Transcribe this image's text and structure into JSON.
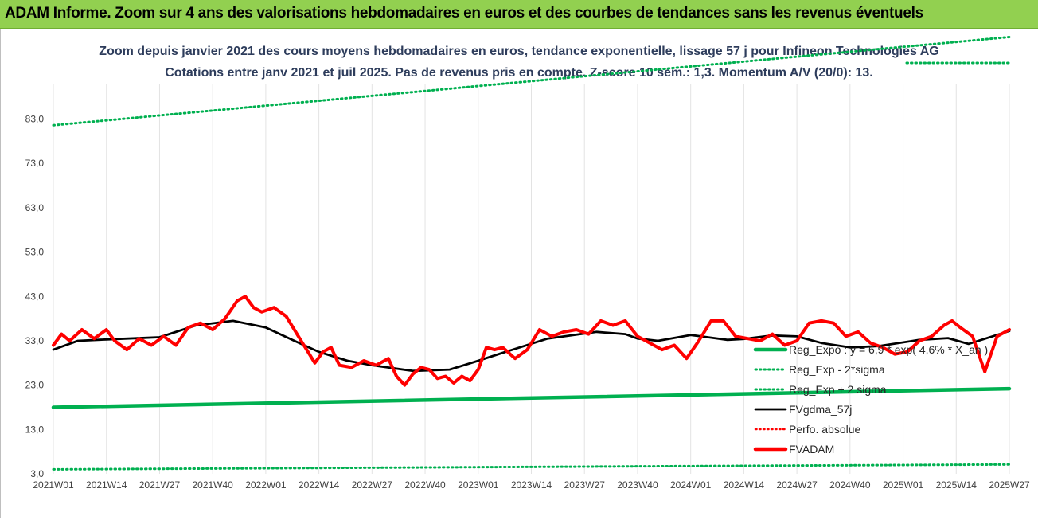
{
  "banner": {
    "title": "ADAM Informe. Zoom sur 4 ans des valorisations hebdomadaires en euros et des courbes de tendances sans les revenus éventuels"
  },
  "chart_data": {
    "type": "line",
    "title": "Zoom depuis janvier 2021 des cours moyens hebdomadaires en euros, tendance exponentielle, lissage 57 j pour Infineon Technologies AG",
    "subtitle": "Cotations entre janv 2021 et juil 2025. Pas de revenus pris en compte. Z-score 10 sem.: 1,3. Momentum A/V (20/0): 13.",
    "xlabel": "",
    "ylabel": "",
    "ylim": [
      3,
      91
    ],
    "yticks": [
      "3,0",
      "13,0",
      "23,0",
      "33,0",
      "43,0",
      "53,0",
      "63,0",
      "73,0",
      "83,0"
    ],
    "x_tick_labels": [
      "2021W01",
      "2021W14",
      "2021W27",
      "2021W40",
      "2022W01",
      "2022W14",
      "2022W27",
      "2022W40",
      "2023W01",
      "2023W14",
      "2023W27",
      "2023W40",
      "2024W01",
      "2024W14",
      "2024W27",
      "2024W40",
      "2025W01",
      "2025W14",
      "2025W27"
    ],
    "grid": "vertical",
    "legend_placement": "bottom-right",
    "colors": {
      "expo": "#00b050",
      "gdma": "#000000",
      "perfo": "#ff0000",
      "fvadam": "#ff0000"
    },
    "legend": [
      {
        "label": "Reg_Expo : y = 6,9 * exp( 4,6% * X_an )",
        "style": "solid-green-thick"
      },
      {
        "label": "Reg_Exp - 2*sigma",
        "style": "dotted-green"
      },
      {
        "label": "Reg_Exp + 2 sigma",
        "style": "dotted-green"
      },
      {
        "label": "FVgdma_57j",
        "style": "solid-black"
      },
      {
        "label": "Perfo. absolue",
        "style": "dotted-red"
      },
      {
        "label": "FVADAM",
        "style": "solid-red-thick"
      }
    ],
    "series": [
      {
        "name": "Reg_Expo : y = 6,9 * exp( 4,6% * X_an )",
        "x_week_index": [
          0,
          234
        ],
        "values": [
          18.0,
          22.2
        ]
      },
      {
        "name": "Reg_Exp - 2*sigma",
        "x_week_index": [
          0,
          234
        ],
        "values": [
          4.0,
          5.1
        ]
      },
      {
        "name": "Reg_Exp + 2 sigma",
        "x_week_index": [
          0,
          234
        ],
        "values": [
          81.6,
          101.5
        ]
      },
      {
        "name": "FVgdma_57j",
        "x_week_index": [
          0,
          6,
          13,
          26,
          35,
          44,
          52,
          59,
          65,
          72,
          78,
          88,
          97,
          104,
          110,
          121,
          133,
          140,
          143,
          148,
          156,
          165,
          169,
          176,
          182,
          188,
          195,
          202,
          212,
          219,
          224,
          234
        ],
        "values": [
          31.0,
          33.0,
          33.3,
          33.8,
          36.5,
          37.5,
          36.0,
          33.0,
          30.5,
          28.5,
          27.5,
          26.2,
          26.5,
          28.5,
          30.3,
          33.5,
          35.0,
          34.5,
          33.5,
          33.0,
          34.3,
          33.2,
          33.4,
          34.2,
          34.0,
          32.5,
          31.5,
          31.8,
          33.2,
          33.6,
          32.3,
          35.2
        ]
      },
      {
        "name": "FVADAM",
        "x_week_index": [
          0,
          2,
          4,
          7,
          10,
          13,
          15,
          18,
          21,
          24,
          27,
          30,
          33,
          36,
          39,
          42,
          45,
          47,
          49,
          51,
          54,
          57,
          60,
          62,
          64,
          66,
          68,
          70,
          73,
          76,
          79,
          82,
          84,
          86,
          88,
          90,
          92,
          94,
          96,
          98,
          100,
          102,
          104,
          106,
          108,
          110,
          113,
          116,
          119,
          122,
          125,
          128,
          131,
          134,
          137,
          140,
          143,
          146,
          149,
          152,
          155,
          158,
          161,
          164,
          167,
          170,
          173,
          176,
          179,
          182,
          185,
          188,
          191,
          194,
          197,
          200,
          203,
          206,
          209,
          212,
          215,
          218,
          220,
          222,
          225,
          228,
          231,
          234
        ],
        "values": [
          32.0,
          34.5,
          33.0,
          35.5,
          33.5,
          35.5,
          33.0,
          31.0,
          33.5,
          32.0,
          34.0,
          32.0,
          36.0,
          37.0,
          35.5,
          38.0,
          42.0,
          43.0,
          40.5,
          39.5,
          40.5,
          38.5,
          34.0,
          31.0,
          28.0,
          30.5,
          31.5,
          27.5,
          27.0,
          28.5,
          27.5,
          29.0,
          25.0,
          23.0,
          25.5,
          27.0,
          26.5,
          24.5,
          25.0,
          23.5,
          25.0,
          24.0,
          26.5,
          31.5,
          31.0,
          31.5,
          29.0,
          31.0,
          35.5,
          34.0,
          35.0,
          35.5,
          34.5,
          37.5,
          36.5,
          37.5,
          34.0,
          32.5,
          31.0,
          32.0,
          29.0,
          33.0,
          37.5,
          37.5,
          34.0,
          33.5,
          33.0,
          34.5,
          32.0,
          33.0,
          37.0,
          37.5,
          37.0,
          34.0,
          35.0,
          32.5,
          31.5,
          30.0,
          30.5,
          33.0,
          34.0,
          36.5,
          37.5,
          36.0,
          34.0,
          26.0,
          34.0,
          35.5
        ]
      }
    ]
  }
}
